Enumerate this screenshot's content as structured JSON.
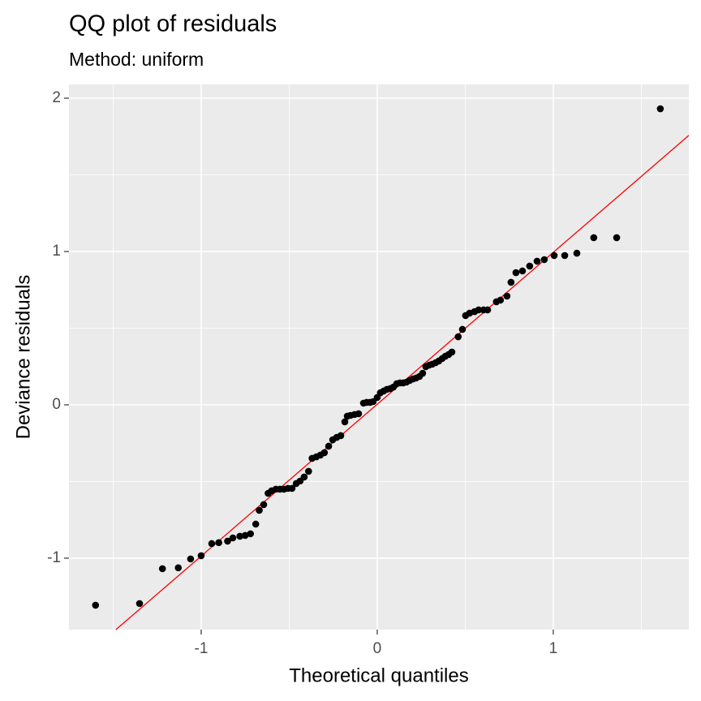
{
  "chart_data": {
    "type": "scatter",
    "title": "QQ plot of residuals",
    "subtitle": "Method: uniform",
    "xlabel": "Theoretical quantiles",
    "ylabel": "Deviance residuals",
    "xlim": [
      -1.751,
      1.77
    ],
    "ylim": [
      -1.466,
      2.09
    ],
    "xticks": [
      -1,
      0,
      1
    ],
    "yticks": [
      -1,
      0,
      1,
      2
    ],
    "xminor": [
      -1.5,
      -0.5,
      0.5,
      1.5
    ],
    "yminor": [
      -0.5,
      0.5,
      1.5
    ],
    "grid": true,
    "series": [
      {
        "color": "#000000",
        "x": [
          -1.6,
          -1.35,
          -1.22,
          -1.13,
          -1.06,
          -1.0,
          -0.94,
          -0.9,
          -0.85,
          -0.82,
          -0.78,
          -0.75,
          -0.72,
          -0.69,
          -0.67,
          -0.645,
          -0.62,
          -0.6,
          -0.576,
          -0.553,
          -0.53,
          -0.507,
          -0.484,
          -0.46,
          -0.438,
          -0.415,
          -0.39,
          -0.37,
          -0.346,
          -0.323,
          -0.3,
          -0.276,
          -0.253,
          -0.23,
          -0.207,
          -0.184,
          -0.17,
          -0.152,
          -0.129,
          -0.106,
          -0.078,
          -0.06,
          -0.041,
          -0.023,
          0,
          0.018,
          0.037,
          0.055,
          0.074,
          0.092,
          0.111,
          0.129,
          0.147,
          0.166,
          0.184,
          0.203,
          0.221,
          0.24,
          0.258,
          0.276,
          0.295,
          0.313,
          0.332,
          0.35,
          0.369,
          0.387,
          0.406,
          0.424,
          0.46,
          0.484,
          0.502,
          0.525,
          0.553,
          0.576,
          0.604,
          0.627,
          0.677,
          0.7,
          0.737,
          0.76,
          0.788,
          0.825,
          0.866,
          0.908,
          0.949,
          1.005,
          1.065,
          1.134,
          1.23,
          1.36,
          1.608
        ],
        "values": [
          -1.307,
          -1.296,
          -1.069,
          -1.063,
          -1.005,
          -0.984,
          -0.905,
          -0.899,
          -0.889,
          -0.868,
          -0.857,
          -0.852,
          -0.841,
          -0.778,
          -0.688,
          -0.651,
          -0.577,
          -0.561,
          -0.55,
          -0.55,
          -0.55,
          -0.545,
          -0.545,
          -0.513,
          -0.497,
          -0.471,
          -0.434,
          -0.349,
          -0.339,
          -0.328,
          -0.312,
          -0.27,
          -0.228,
          -0.212,
          -0.201,
          -0.111,
          -0.074,
          -0.069,
          -0.063,
          -0.058,
          0.011,
          0.016,
          0.016,
          0.021,
          0.048,
          0.079,
          0.09,
          0.101,
          0.106,
          0.116,
          0.138,
          0.143,
          0.143,
          0.148,
          0.159,
          0.169,
          0.175,
          0.185,
          0.206,
          0.249,
          0.259,
          0.265,
          0.275,
          0.286,
          0.302,
          0.317,
          0.328,
          0.344,
          0.444,
          0.492,
          0.582,
          0.598,
          0.608,
          0.619,
          0.619,
          0.619,
          0.672,
          0.683,
          0.709,
          0.799,
          0.862,
          0.873,
          0.905,
          0.937,
          0.947,
          0.974,
          0.974,
          0.989,
          1.09,
          1.09,
          1.931
        ]
      }
    ],
    "reference_line": {
      "color": "#ff0000",
      "x": [
        -1.484,
        1.77
      ],
      "y": [
        -1.466,
        1.757
      ]
    }
  }
}
